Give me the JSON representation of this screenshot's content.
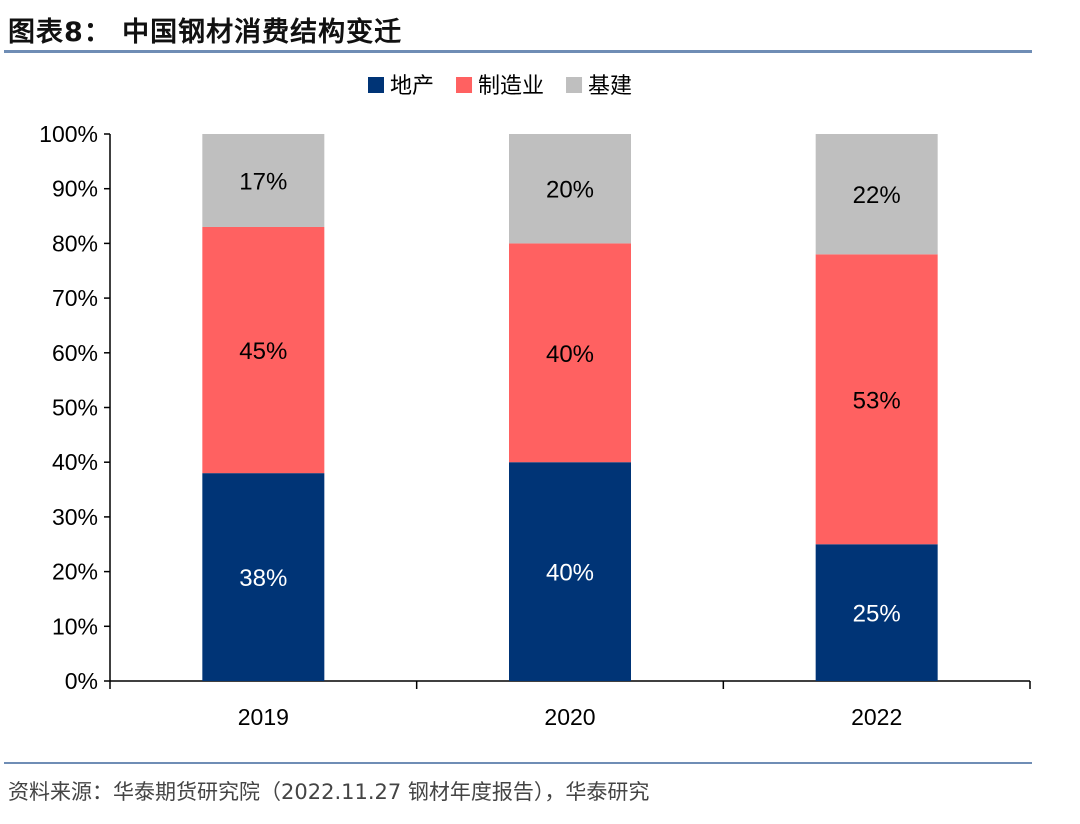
{
  "title": "图表8：  中国钢材消费结构变迁",
  "source": "资料来源：华泰期货研究院（2022.11.27 钢材年度报告），华泰研究",
  "chart_data": {
    "type": "bar",
    "stacked": true,
    "categories": [
      "2019",
      "2020",
      "2022"
    ],
    "series": [
      {
        "name": "地产",
        "values": [
          38,
          40,
          25
        ],
        "color": "#003476",
        "label_color": "#ffffff"
      },
      {
        "name": "制造业",
        "values": [
          45,
          40,
          53
        ],
        "color": "#ff6161",
        "label_color": "#000000"
      },
      {
        "name": "基建",
        "values": [
          17,
          20,
          22
        ],
        "color": "#bfbfbf",
        "label_color": "#000000"
      }
    ],
    "ylim": [
      0,
      100
    ],
    "yticks": [
      "0%",
      "10%",
      "20%",
      "30%",
      "40%",
      "50%",
      "60%",
      "70%",
      "80%",
      "90%",
      "100%"
    ],
    "value_suffix": "%",
    "legend_position": "top",
    "grid": false
  }
}
